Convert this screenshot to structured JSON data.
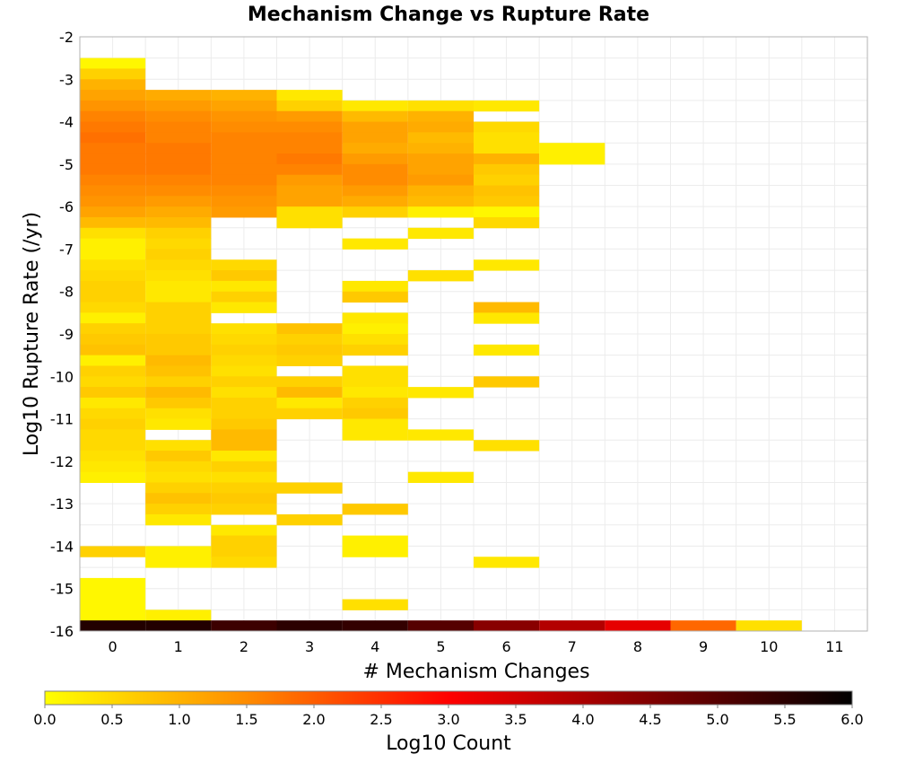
{
  "chart_data": {
    "type": "heatmap",
    "title": "Mechanism Change vs Rupture Rate",
    "xlabel": "# Mechanism Changes",
    "ylabel": "Log10 Rupture Rate (/yr)",
    "xlim": [
      -0.5,
      11.5
    ],
    "ylim": [
      -16,
      -2
    ],
    "x_ticks": [
      "0",
      "1",
      "2",
      "3",
      "4",
      "5",
      "6",
      "7",
      "8",
      "9",
      "10",
      "11"
    ],
    "y_ticks": [
      "-2",
      "-3",
      "-4",
      "-5",
      "-6",
      "-7",
      "-8",
      "-9",
      "-10",
      "-11",
      "-12",
      "-13",
      "-14",
      "-15",
      "-16"
    ],
    "grid": true,
    "bin_height": 0.25,
    "colorbar": {
      "label": "Log10 Count",
      "range": [
        0,
        6
      ],
      "ticks": [
        "0.0",
        "0.5",
        "1.0",
        "1.5",
        "2.0",
        "2.5",
        "3.0",
        "3.5",
        "4.0",
        "4.5",
        "5.0",
        "5.5",
        "6.0"
      ],
      "colors": [
        "#ffff00",
        "#ff8c00",
        "#ff0000",
        "#800000",
        "#000000"
      ],
      "placement": "bottom"
    },
    "columns": [
      {
        "x": 0,
        "bins": [
          [
            -2.75,
            0.1
          ],
          [
            -3.0,
            0.6
          ],
          [
            -3.25,
            1.0
          ],
          [
            -3.5,
            1.2
          ],
          [
            -3.75,
            1.4
          ],
          [
            -4.0,
            1.6
          ],
          [
            -4.25,
            1.7
          ],
          [
            -4.5,
            1.8
          ],
          [
            -4.75,
            1.7
          ],
          [
            -5.0,
            1.7
          ],
          [
            -5.25,
            1.7
          ],
          [
            -5.5,
            1.6
          ],
          [
            -5.75,
            1.5
          ],
          [
            -6.0,
            1.4
          ],
          [
            -6.25,
            1.2
          ],
          [
            -6.5,
            0.9
          ],
          [
            -6.75,
            0.4
          ],
          [
            -7.0,
            0.2
          ],
          [
            -7.25,
            0.2
          ],
          [
            -7.5,
            0.4
          ],
          [
            -7.75,
            0.5
          ],
          [
            -8.0,
            0.6
          ],
          [
            -8.25,
            0.6
          ],
          [
            -8.5,
            0.5
          ],
          [
            -8.75,
            0.2
          ],
          [
            -9.0,
            0.6
          ],
          [
            -9.25,
            0.7
          ],
          [
            -9.5,
            0.8
          ],
          [
            -9.75,
            0.2
          ],
          [
            -10.0,
            0.6
          ],
          [
            -10.25,
            0.5
          ],
          [
            -10.5,
            0.7
          ],
          [
            -10.75,
            0.3
          ],
          [
            -11.0,
            0.5
          ],
          [
            -11.25,
            0.6
          ],
          [
            -11.5,
            0.5
          ],
          [
            -11.75,
            0.5
          ],
          [
            -12.0,
            0.4
          ],
          [
            -12.25,
            0.3
          ],
          [
            -12.5,
            0.2
          ],
          [
            -14.25,
            0.6
          ],
          [
            -15.0,
            0.1
          ],
          [
            -15.25,
            0.1
          ],
          [
            -15.5,
            0.1
          ],
          [
            -15.75,
            0.1
          ],
          [
            -16.0,
            5.6
          ]
        ]
      },
      {
        "x": 1,
        "bins": [
          [
            -3.5,
            1.1
          ],
          [
            -3.75,
            1.3
          ],
          [
            -4.0,
            1.5
          ],
          [
            -4.25,
            1.6
          ],
          [
            -4.5,
            1.6
          ],
          [
            -4.75,
            1.7
          ],
          [
            -5.0,
            1.7
          ],
          [
            -5.25,
            1.7
          ],
          [
            -5.5,
            1.6
          ],
          [
            -5.75,
            1.5
          ],
          [
            -6.0,
            1.3
          ],
          [
            -6.25,
            1.1
          ],
          [
            -6.5,
            0.9
          ],
          [
            -6.75,
            0.6
          ],
          [
            -7.0,
            0.5
          ],
          [
            -7.25,
            0.6
          ],
          [
            -7.5,
            0.5
          ],
          [
            -7.75,
            0.4
          ],
          [
            -8.0,
            0.3
          ],
          [
            -8.25,
            0.3
          ],
          [
            -8.5,
            0.6
          ],
          [
            -8.75,
            0.6
          ],
          [
            -9.0,
            0.6
          ],
          [
            -9.25,
            0.7
          ],
          [
            -9.5,
            0.7
          ],
          [
            -9.75,
            0.9
          ],
          [
            -10.0,
            0.8
          ],
          [
            -10.25,
            0.6
          ],
          [
            -10.5,
            0.9
          ],
          [
            -10.75,
            0.7
          ],
          [
            -11.0,
            0.4
          ],
          [
            -11.25,
            0.3
          ],
          [
            -11.75,
            0.4
          ],
          [
            -12.0,
            0.7
          ],
          [
            -12.25,
            0.5
          ],
          [
            -12.5,
            0.4
          ],
          [
            -12.75,
            0.6
          ],
          [
            -13.0,
            0.8
          ],
          [
            -13.25,
            0.6
          ],
          [
            -13.5,
            0.3
          ],
          [
            -14.25,
            0.2
          ],
          [
            -14.5,
            0.2
          ],
          [
            -15.75,
            0.2
          ],
          [
            -16.0,
            5.6
          ]
        ]
      },
      {
        "x": 2,
        "bins": [
          [
            -3.5,
            1.0
          ],
          [
            -3.75,
            1.2
          ],
          [
            -4.0,
            1.4
          ],
          [
            -4.25,
            1.5
          ],
          [
            -4.5,
            1.6
          ],
          [
            -4.75,
            1.6
          ],
          [
            -5.0,
            1.6
          ],
          [
            -5.25,
            1.6
          ],
          [
            -5.5,
            1.6
          ],
          [
            -5.75,
            1.5
          ],
          [
            -6.0,
            1.4
          ],
          [
            -6.25,
            1.3
          ],
          [
            -7.5,
            0.5
          ],
          [
            -7.75,
            0.7
          ],
          [
            -8.0,
            0.3
          ],
          [
            -8.25,
            0.6
          ],
          [
            -8.5,
            0.3
          ],
          [
            -9.0,
            0.4
          ],
          [
            -9.25,
            0.5
          ],
          [
            -9.5,
            0.6
          ],
          [
            -9.75,
            0.5
          ],
          [
            -10.0,
            0.4
          ],
          [
            -10.25,
            0.6
          ],
          [
            -10.5,
            0.4
          ],
          [
            -10.75,
            0.6
          ],
          [
            -11.0,
            0.6
          ],
          [
            -11.25,
            0.7
          ],
          [
            -11.5,
            0.9
          ],
          [
            -11.75,
            0.9
          ],
          [
            -12.0,
            0.3
          ],
          [
            -12.25,
            0.6
          ],
          [
            -12.5,
            0.4
          ],
          [
            -12.75,
            0.6
          ],
          [
            -13.0,
            0.7
          ],
          [
            -13.25,
            0.6
          ],
          [
            -13.75,
            0.3
          ],
          [
            -14.0,
            0.6
          ],
          [
            -14.25,
            0.6
          ],
          [
            -14.5,
            0.5
          ],
          [
            -16.0,
            5.3
          ]
        ]
      },
      {
        "x": 3,
        "bins": [
          [
            -3.5,
            0.3
          ],
          [
            -3.75,
            0.6
          ],
          [
            -4.0,
            1.3
          ],
          [
            -4.25,
            1.5
          ],
          [
            -4.5,
            1.6
          ],
          [
            -4.75,
            1.6
          ],
          [
            -5.0,
            1.7
          ],
          [
            -5.25,
            1.6
          ],
          [
            -5.5,
            1.3
          ],
          [
            -5.75,
            1.2
          ],
          [
            -6.0,
            1.2
          ],
          [
            -6.25,
            0.4
          ],
          [
            -6.5,
            0.4
          ],
          [
            -9.0,
            0.8
          ],
          [
            -9.25,
            0.6
          ],
          [
            -9.5,
            0.7
          ],
          [
            -9.75,
            0.6
          ],
          [
            -10.25,
            0.6
          ],
          [
            -10.5,
            0.9
          ],
          [
            -10.75,
            0.3
          ],
          [
            -11.0,
            0.6
          ],
          [
            -12.75,
            0.6
          ],
          [
            -13.5,
            0.6
          ],
          [
            -16.0,
            5.5
          ]
        ]
      },
      {
        "x": 4,
        "bins": [
          [
            -3.75,
            0.3
          ],
          [
            -4.0,
            0.9
          ],
          [
            -4.25,
            1.2
          ],
          [
            -4.5,
            1.2
          ],
          [
            -4.75,
            1.1
          ],
          [
            -5.0,
            1.3
          ],
          [
            -5.25,
            1.5
          ],
          [
            -5.5,
            1.5
          ],
          [
            -5.75,
            1.3
          ],
          [
            -6.0,
            1.1
          ],
          [
            -6.25,
            0.6
          ],
          [
            -7.0,
            0.3
          ],
          [
            -8.0,
            0.3
          ],
          [
            -8.25,
            0.7
          ],
          [
            -8.75,
            0.3
          ],
          [
            -9.0,
            0.2
          ],
          [
            -9.25,
            0.4
          ],
          [
            -9.5,
            0.6
          ],
          [
            -10.0,
            0.4
          ],
          [
            -10.25,
            0.4
          ],
          [
            -10.5,
            0.3
          ],
          [
            -10.75,
            0.6
          ],
          [
            -11.0,
            0.7
          ],
          [
            -11.25,
            0.3
          ],
          [
            -11.5,
            0.3
          ],
          [
            -13.25,
            0.7
          ],
          [
            -14.0,
            0.2
          ],
          [
            -14.25,
            0.2
          ],
          [
            -15.5,
            0.4
          ],
          [
            -16.0,
            5.4
          ]
        ]
      },
      {
        "x": 5,
        "bins": [
          [
            -3.75,
            0.4
          ],
          [
            -4.0,
            1.0
          ],
          [
            -4.25,
            1.1
          ],
          [
            -4.5,
            0.9
          ],
          [
            -4.75,
            1.0
          ],
          [
            -5.0,
            1.2
          ],
          [
            -5.25,
            1.2
          ],
          [
            -5.5,
            1.3
          ],
          [
            -5.75,
            1.0
          ],
          [
            -6.0,
            0.9
          ],
          [
            -6.25,
            0.2
          ],
          [
            -6.75,
            0.3
          ],
          [
            -7.75,
            0.4
          ],
          [
            -10.5,
            0.3
          ],
          [
            -11.5,
            0.3
          ],
          [
            -12.5,
            0.3
          ],
          [
            -16.0,
            5.0
          ]
        ]
      },
      {
        "x": 6,
        "bins": [
          [
            -3.75,
            0.3
          ],
          [
            -4.25,
            0.5
          ],
          [
            -4.5,
            0.4
          ],
          [
            -4.75,
            0.4
          ],
          [
            -5.0,
            1.0
          ],
          [
            -5.25,
            0.7
          ],
          [
            -5.5,
            0.6
          ],
          [
            -5.75,
            0.8
          ],
          [
            -6.0,
            0.7
          ],
          [
            -6.25,
            0.1
          ],
          [
            -6.5,
            0.5
          ],
          [
            -7.5,
            0.3
          ],
          [
            -8.5,
            0.9
          ],
          [
            -8.75,
            0.3
          ],
          [
            -9.5,
            0.3
          ],
          [
            -10.25,
            0.7
          ],
          [
            -11.75,
            0.4
          ],
          [
            -14.5,
            0.3
          ],
          [
            -16.0,
            4.4
          ]
        ]
      },
      {
        "x": 7,
        "bins": [
          [
            -4.75,
            0.2
          ],
          [
            -5.0,
            0.2
          ],
          [
            -16.0,
            3.9
          ]
        ]
      },
      {
        "x": 8,
        "bins": [
          [
            -16.0,
            3.3
          ]
        ]
      },
      {
        "x": 9,
        "bins": [
          [
            -16.0,
            1.9
          ]
        ]
      },
      {
        "x": 10,
        "bins": [
          [
            -16.0,
            0.4
          ]
        ]
      }
    ]
  }
}
